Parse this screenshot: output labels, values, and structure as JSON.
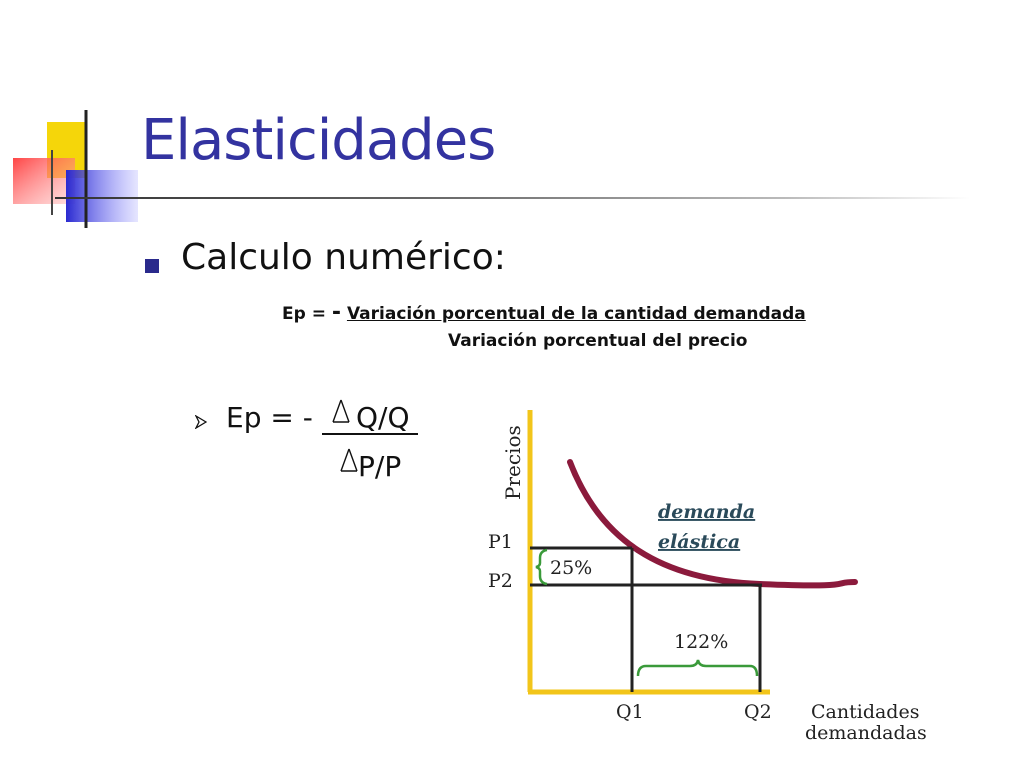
{
  "title": "Elasticidades",
  "subtitle": "Calculo numérico:",
  "formula": {
    "lhs": "Ep = ",
    "minus": "-",
    "numerator": "Variación porcentual de la cantidad demandada",
    "denominator": "Variación porcentual del precio"
  },
  "ep_bullet": {
    "lhs": "Ep = -",
    "numerator": "Q/Q",
    "denominator": "P/P",
    "delta_icon": "triangle-delta"
  },
  "diagram": {
    "y_axis_label": "Precios",
    "x_axis_label_1": "Cantidades",
    "x_axis_label_2": "demandadas",
    "p1": "P1",
    "p2": "P2",
    "q1": "Q1",
    "q2": "Q2",
    "curve_label_1": "demanda",
    "curve_label_2": "elástica",
    "price_change": "25%",
    "quantity_change": "122%"
  },
  "colors": {
    "title": "#3333a0",
    "axis": "#f2c51a",
    "curve": "#8b1a3c",
    "brace": "#3a9a3a",
    "curve_label": "#2a4a5a"
  }
}
